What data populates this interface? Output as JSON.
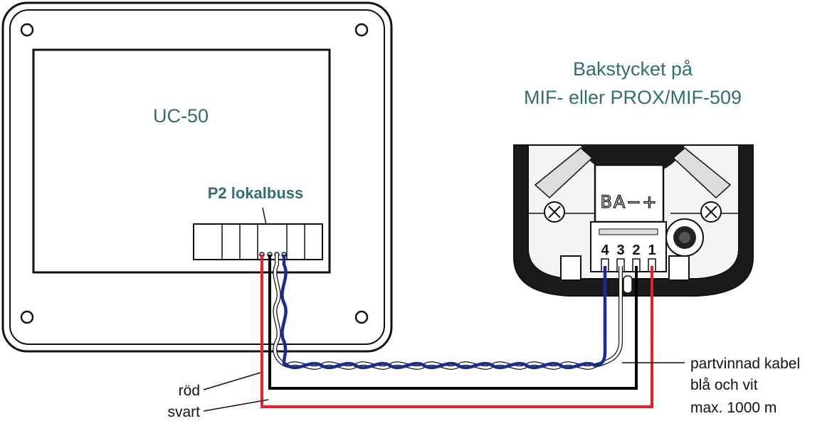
{
  "device_left": {
    "name": "UC-50",
    "connector_label": "P2 lokalbuss"
  },
  "device_right": {
    "title_line1": "Bakstycket på",
    "title_line2": "MIF- eller PROX/MIF-509",
    "terminal_block_label": "BA−+",
    "pin_numbers": [
      "4",
      "3",
      "2",
      "1"
    ]
  },
  "wire_labels": {
    "red": "röd",
    "black": "svart"
  },
  "cable_note": {
    "line1": "partvinnad kabel",
    "line2": "blå och vit",
    "line3": "max. 1000 m"
  },
  "colors": {
    "title_teal": "#2f6f73",
    "wire_red": "#e8202a",
    "wire_blue": "#1a2a9a",
    "wire_black": "#000000"
  }
}
